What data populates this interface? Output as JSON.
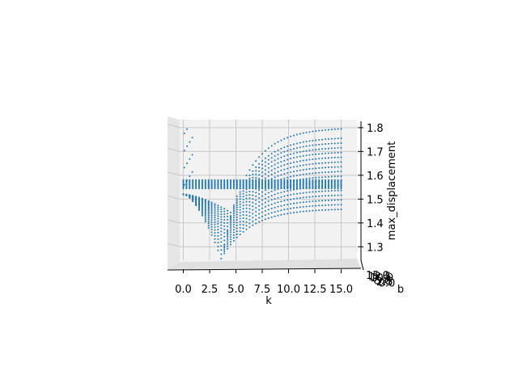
{
  "chart_data": {
    "type": "scatter",
    "title": "",
    "xlabel": "k",
    "ylabel": "b",
    "zlabel": "max_displacement",
    "xlim": [
      -1.5,
      16.5
    ],
    "zlim": [
      1.25,
      1.82
    ],
    "x_ticks": [
      "0.0",
      "2.5",
      "5.0",
      "7.5",
      "10.0",
      "12.5",
      "15.0"
    ],
    "x_tick_values": [
      0.0,
      2.5,
      5.0,
      7.5,
      10.0,
      12.5,
      15.0
    ],
    "z_ticks": [
      "1.3",
      "1.4",
      "1.5",
      "1.6",
      "1.7",
      "1.8"
    ],
    "z_tick_values": [
      1.3,
      1.4,
      1.5,
      1.6,
      1.7,
      1.8
    ],
    "y_ticks": [
      "15.0",
      "12.5",
      "10.0",
      "7.5",
      "5.0",
      "2.5",
      "0.0"
    ],
    "grid": true,
    "marker_color": "#1f77b4",
    "series": [
      {
        "values": [
          1.46,
          1.48,
          1.5,
          1.52,
          1.54,
          1.56,
          1.58,
          1.6,
          1.62,
          1.64,
          1.66,
          1.68,
          1.7,
          1.72,
          1.74,
          1.76,
          1.8
        ]
      }
    ]
  }
}
